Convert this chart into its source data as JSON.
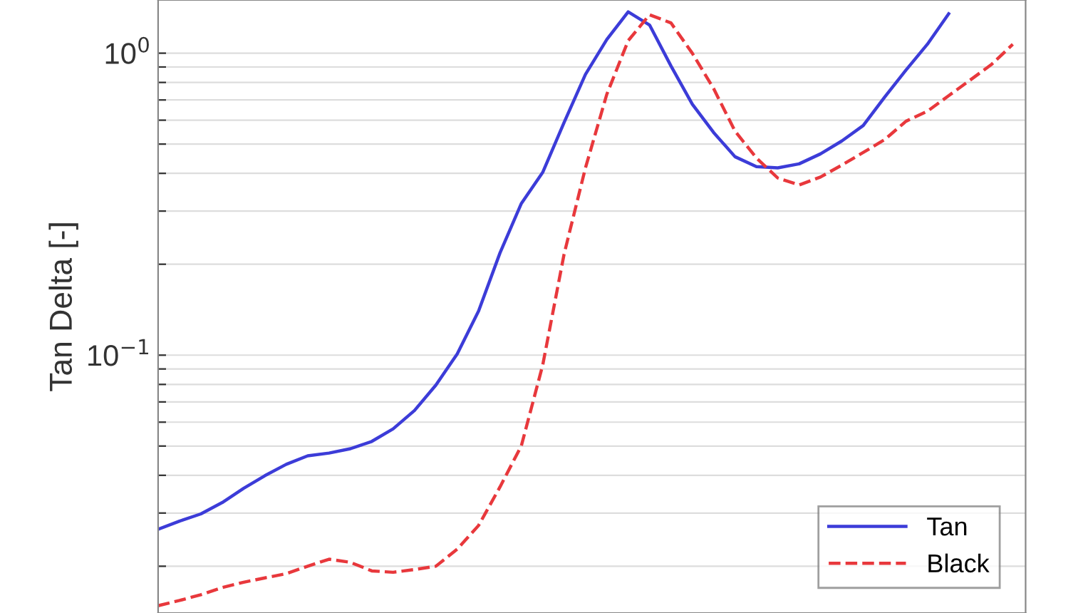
{
  "chart_data": {
    "type": "line",
    "ylabel": "Tan Delta [-]",
    "log": "y",
    "grid": "y",
    "legend": "bottom right",
    "categories": [
      null,
      null,
      null,
      null,
      null,
      null,
      null,
      null,
      null,
      null,
      null,
      null,
      null,
      null,
      null,
      null,
      null,
      null,
      null,
      null,
      null,
      null,
      null,
      null,
      null,
      null,
      null,
      null,
      null,
      null,
      null,
      null,
      null,
      null,
      null,
      null,
      null,
      null,
      null,
      null,
      null
    ],
    "ylim": [
      0.014,
      1.5
    ],
    "yticks": [
      {
        "value": 0.02,
        "label": null
      },
      {
        "value": 0.03,
        "label": null
      },
      {
        "value": 0.04,
        "label": null
      },
      {
        "value": 0.05,
        "label": null
      },
      {
        "value": 0.06,
        "label": null
      },
      {
        "value": 0.07,
        "label": null
      },
      {
        "value": 0.08,
        "label": null
      },
      {
        "value": 0.09,
        "label": null
      },
      {
        "value": 0.1,
        "label": "10$^{−1}$"
      },
      {
        "value": 0.2,
        "label": null
      },
      {
        "value": 0.3,
        "label": null
      },
      {
        "value": 0.4,
        "label": null
      },
      {
        "value": 0.5,
        "label": null
      },
      {
        "value": 0.6,
        "label": null
      },
      {
        "value": 0.7,
        "label": null
      },
      {
        "value": 0.8,
        "label": null
      },
      {
        "value": 0.9,
        "label": null
      },
      {
        "value": 1,
        "label": "10$^{0}$"
      }
    ],
    "series": [
      {
        "name": "Tan",
        "color": "#3c3cd8",
        "line_style": "solid",
        "values": [
          0.0265,
          0.0282,
          0.0298,
          0.0325,
          0.0362,
          0.0399,
          0.0435,
          0.0464,
          0.0474,
          0.049,
          0.0518,
          0.057,
          0.0656,
          0.0796,
          0.101,
          0.14,
          0.218,
          0.318,
          0.403,
          0.589,
          0.851,
          1.11,
          1.37,
          1.24,
          0.908,
          0.678,
          0.546,
          0.454,
          0.421,
          0.417,
          0.43,
          0.464,
          0.512,
          0.576,
          0.715,
          0.879,
          1.07,
          1.35,
          null,
          null,
          null
        ]
      },
      {
        "name": "Black",
        "color": "#e8383c",
        "line_style": "dashed",
        "values": [
          0.0148,
          0.0154,
          0.0161,
          0.017,
          0.0177,
          0.0183,
          0.0189,
          0.02,
          0.0211,
          0.0206,
          0.0193,
          0.0191,
          0.0195,
          0.02,
          0.0228,
          0.0273,
          0.0366,
          0.0501,
          0.0927,
          0.216,
          0.417,
          0.731,
          1.1,
          1.34,
          1.26,
          1.0,
          0.763,
          0.552,
          0.45,
          0.386,
          0.366,
          0.389,
          0.426,
          0.469,
          0.517,
          0.595,
          0.642,
          0.723,
          0.814,
          0.917,
          1.07
        ]
      }
    ]
  }
}
